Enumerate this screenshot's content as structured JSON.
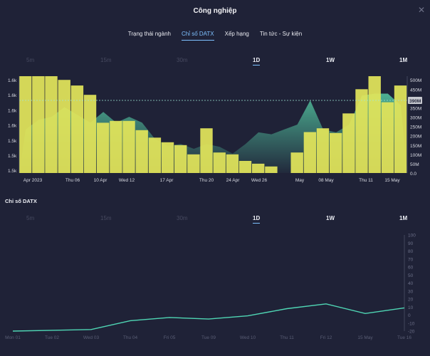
{
  "header": {
    "title": "Công nghiệp"
  },
  "tabs": [
    {
      "label": "Trạng thái ngành",
      "active": false
    },
    {
      "label": "Chỉ số DATX",
      "active": true
    },
    {
      "label": "Xếp hạng",
      "active": false
    },
    {
      "label": "Tin tức - Sự kiện",
      "active": false
    }
  ],
  "ranges": [
    "5m",
    "15m",
    "30m",
    "1D",
    "1W",
    "1M"
  ],
  "selected_range": "1D",
  "section": {
    "label": "Chỉ số DATX"
  },
  "colors": {
    "background": "#1f2237",
    "bar": "#e2e55a",
    "area": "#4fb898",
    "line": "#4fd6b4",
    "accent": "#7ec1ff",
    "price_tag": "#c7c9cf"
  },
  "chart_data": [
    {
      "type": "bar",
      "description_series": "volume bars with price area overlay",
      "x_tick_labels": [
        "Apr 2023",
        "Thu 06",
        "10 Apr",
        "Wed 12",
        "17 Apr",
        "Thu 20",
        "24 Apr",
        "Wed 26",
        "May",
        "08 May",
        "Thu 11",
        "15 May"
      ],
      "left_axis_labels": [
        "1.6k",
        "1.6k",
        "1.6k",
        "1.6k",
        "1.5k",
        "1.5k",
        "1.5k"
      ],
      "right_axis_labels": [
        "500M",
        "450M",
        "400M",
        "350M",
        "300M",
        "250M",
        "200M",
        "150M",
        "100M",
        "50M",
        "0.0"
      ],
      "right_ylim": [
        0,
        520
      ],
      "current_value_label": "390M",
      "volume_millions": [
        520,
        520,
        520,
        500,
        470,
        420,
        270,
        280,
        280,
        230,
        190,
        165,
        150,
        100,
        240,
        110,
        100,
        65,
        50,
        35,
        0,
        110,
        220,
        240,
        215,
        320,
        450,
        520,
        380,
        470
      ],
      "price_level": [
        0.45,
        0.55,
        0.58,
        0.68,
        0.6,
        0.52,
        0.63,
        0.52,
        0.58,
        0.52,
        0.35,
        0.28,
        0.3,
        0.25,
        0.3,
        0.27,
        0.2,
        0.3,
        0.42,
        0.4,
        0.45,
        0.5,
        0.75,
        0.45,
        0.42,
        0.5,
        0.8,
        0.82,
        0.82,
        0.7
      ]
    },
    {
      "type": "line",
      "x_tick_labels": [
        "Mon 01",
        "Tue 02",
        "Wed 03",
        "Thu 04",
        "Fri 05",
        "Tue 09",
        "Wed 10",
        "Thu 11",
        "Fri 12",
        "15 May",
        "Tue 16"
      ],
      "y_tick_labels": [
        "100",
        "90",
        "80",
        "70",
        "60",
        "50",
        "40",
        "30",
        "20",
        "10",
        "0",
        "-10",
        "-20"
      ],
      "ylim": [
        -20,
        100
      ],
      "values": [
        -20,
        -19,
        -18,
        -7,
        -3,
        -5,
        -1,
        8,
        14,
        2,
        9
      ]
    }
  ]
}
